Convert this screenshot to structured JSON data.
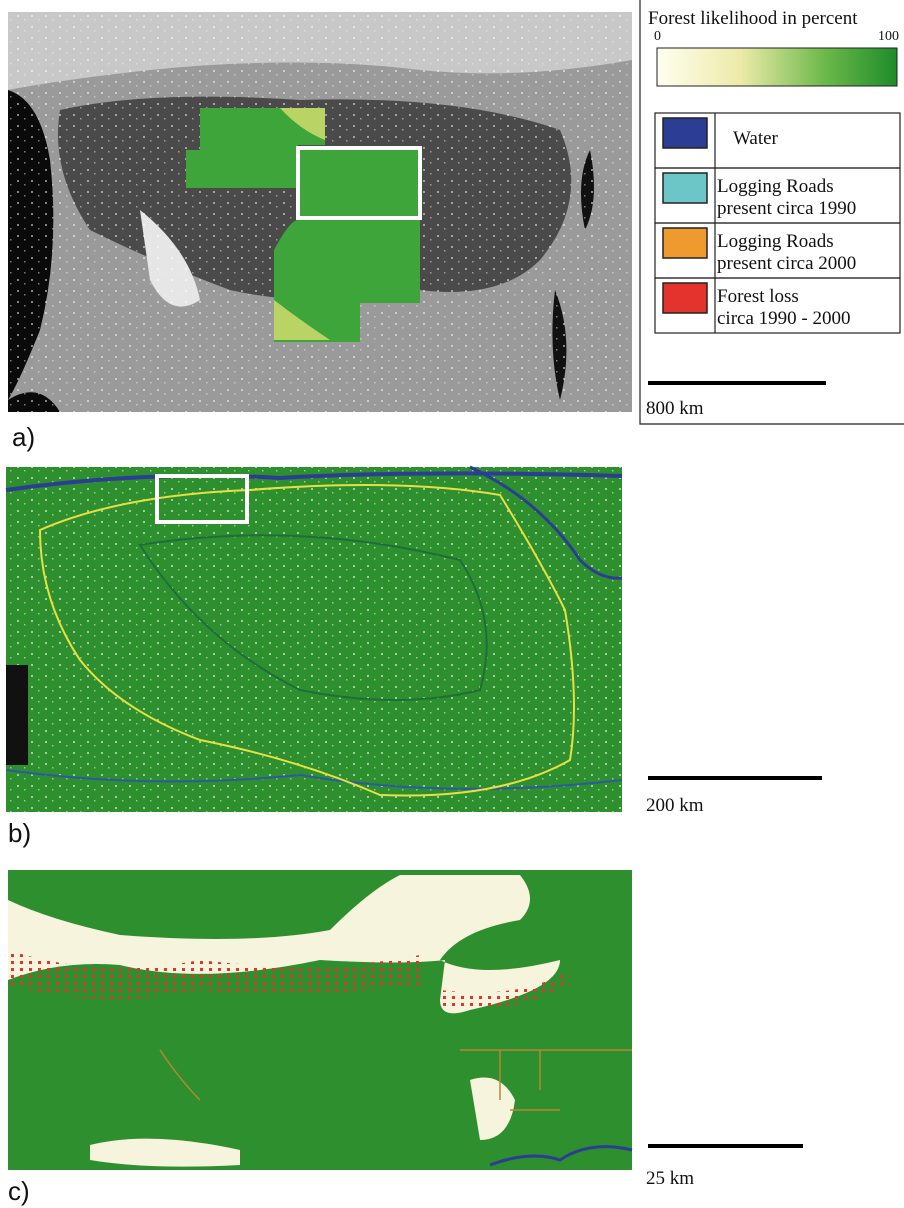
{
  "legend": {
    "title": "Forest likelihood in percent",
    "gradient_min": "0",
    "gradient_max": "100",
    "items": [
      {
        "lines": [
          "Water"
        ],
        "color": "#2c3d94"
      },
      {
        "lines": [
          "Logging Roads",
          "present circa 1990"
        ],
        "color": "#6cc6c8"
      },
      {
        "lines": [
          "Logging Roads",
          "present circa 2000"
        ],
        "color": "#ee9a2e"
      },
      {
        "lines": [
          "Forest loss",
          "circa 1990 - 2000"
        ],
        "color": "#e4322c"
      }
    ]
  },
  "panels": [
    {
      "label": "a)",
      "scale_bar": "800 km"
    },
    {
      "label": "b)",
      "scale_bar": "200 km"
    },
    {
      "label": "c)",
      "scale_bar": "25 km"
    }
  ]
}
